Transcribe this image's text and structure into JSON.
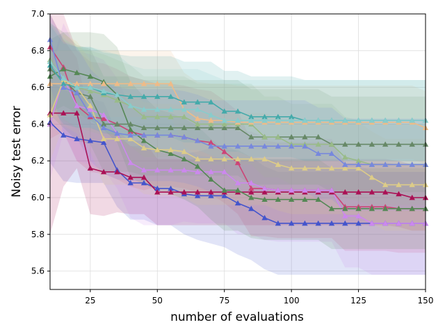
{
  "chart_data": {
    "type": "line",
    "title": "",
    "xlabel": "number of evaluations",
    "ylabel": "Noisy test error",
    "xlim": [
      10,
      150
    ],
    "ylim": [
      5.5,
      7.0
    ],
    "xticks": [
      25,
      50,
      75,
      100,
      125,
      150
    ],
    "yticks": [
      5.6,
      5.8,
      6.0,
      6.2,
      6.4,
      6.6,
      6.8,
      7.0
    ],
    "xtick_labels": [
      "25",
      "50",
      "75",
      "100",
      "125",
      "150"
    ],
    "ytick_labels": [
      "5.6",
      "5.8",
      "6.0",
      "6.2",
      "6.4",
      "6.6",
      "6.8",
      "7.0"
    ],
    "grid": true,
    "marker": "triangle",
    "x": [
      10,
      15,
      20,
      25,
      30,
      35,
      40,
      45,
      50,
      55,
      60,
      65,
      70,
      75,
      80,
      85,
      90,
      95,
      100,
      105,
      110,
      115,
      120,
      125,
      130,
      135,
      140,
      145,
      150
    ],
    "series": [
      {
        "name": "blue",
        "color": "#4455cc",
        "values": [
          6.41,
          6.34,
          6.32,
          6.31,
          6.3,
          6.15,
          6.08,
          6.08,
          6.05,
          6.05,
          6.02,
          6.01,
          6.01,
          6.01,
          5.97,
          5.94,
          5.89,
          5.86,
          5.86,
          5.86,
          5.86,
          5.86,
          5.86,
          5.86,
          5.86,
          5.86,
          5.86,
          5.86,
          5.86
        ],
        "band": [
          0.22,
          0.25,
          0.24,
          0.23,
          0.22,
          0.2,
          0.2,
          0.2,
          0.2,
          0.2,
          0.22,
          0.24,
          0.26,
          0.28,
          0.28,
          0.28,
          0.28,
          0.28,
          0.28,
          0.28,
          0.28,
          0.28,
          0.28,
          0.28,
          0.28,
          0.28,
          0.28,
          0.28,
          0.28
        ]
      },
      {
        "name": "crimson",
        "color": "#aa1155",
        "values": [
          6.46,
          6.46,
          6.46,
          6.16,
          6.14,
          6.14,
          6.11,
          6.11,
          6.03,
          6.03,
          6.03,
          6.03,
          6.03,
          6.03,
          6.03,
          6.03,
          6.03,
          6.03,
          6.03,
          6.03,
          6.03,
          6.03,
          6.03,
          6.03,
          6.03,
          6.03,
          6.02,
          6.0,
          6.0
        ],
        "band": [
          0.66,
          0.4,
          0.3,
          0.25,
          0.24,
          0.22,
          0.2,
          0.2,
          0.18,
          0.18,
          0.18,
          0.18,
          0.18,
          0.18,
          0.18,
          0.18,
          0.18,
          0.18,
          0.18,
          0.18,
          0.18,
          0.18,
          0.18,
          0.18,
          0.18,
          0.18,
          0.18,
          0.18,
          0.18
        ]
      },
      {
        "name": "pink",
        "color": "#cc4477",
        "values": [
          6.82,
          6.71,
          6.5,
          6.44,
          6.43,
          6.4,
          6.36,
          6.34,
          6.34,
          6.34,
          6.33,
          6.31,
          6.3,
          6.25,
          6.19,
          6.05,
          6.05,
          6.04,
          6.04,
          6.04,
          6.04,
          6.04,
          5.95,
          5.95,
          5.95,
          5.95,
          5.94,
          5.94,
          5.94
        ],
        "band": [
          0.5,
          0.35,
          0.3,
          0.3,
          0.3,
          0.3,
          0.3,
          0.3,
          0.28,
          0.28,
          0.28,
          0.28,
          0.28,
          0.28,
          0.28,
          0.26,
          0.26,
          0.26,
          0.26,
          0.26,
          0.26,
          0.26,
          0.24,
          0.24,
          0.24,
          0.24,
          0.24,
          0.24,
          0.24
        ]
      },
      {
        "name": "violet",
        "color": "#cc88ee",
        "values": [
          6.4,
          6.65,
          6.5,
          6.48,
          6.45,
          6.35,
          6.19,
          6.15,
          6.15,
          6.15,
          6.15,
          6.14,
          6.14,
          6.14,
          6.08,
          6.08,
          6.05,
          6.04,
          6.04,
          6.04,
          6.04,
          6.04,
          5.9,
          5.9,
          5.86,
          5.86,
          5.86,
          5.86,
          5.86
        ],
        "band": [
          0.3,
          0.3,
          0.3,
          0.3,
          0.3,
          0.3,
          0.3,
          0.3,
          0.3,
          0.3,
          0.28,
          0.28,
          0.28,
          0.28,
          0.28,
          0.28,
          0.28,
          0.28,
          0.28,
          0.28,
          0.28,
          0.28,
          0.28,
          0.28,
          0.28,
          0.28,
          0.28,
          0.28,
          0.28
        ]
      },
      {
        "name": "green",
        "color": "#558855",
        "values": [
          6.66,
          6.7,
          6.68,
          6.66,
          6.63,
          6.56,
          6.37,
          6.31,
          6.26,
          6.24,
          6.21,
          6.17,
          6.1,
          6.04,
          6.04,
          6.0,
          5.99,
          5.99,
          5.99,
          5.99,
          5.99,
          5.94,
          5.94,
          5.94,
          5.94,
          5.94,
          5.94,
          5.94,
          5.94
        ],
        "band": [
          0.2,
          0.2,
          0.22,
          0.24,
          0.26,
          0.26,
          0.26,
          0.24,
          0.22,
          0.22,
          0.22,
          0.22,
          0.22,
          0.22,
          0.22,
          0.22,
          0.22,
          0.22,
          0.22,
          0.22,
          0.22,
          0.22,
          0.22,
          0.22,
          0.22,
          0.22,
          0.22,
          0.22,
          0.22
        ]
      },
      {
        "name": "olive-green",
        "color": "#668866",
        "values": [
          6.7,
          6.64,
          6.57,
          6.55,
          6.4,
          6.4,
          6.4,
          6.38,
          6.38,
          6.38,
          6.38,
          6.38,
          6.38,
          6.38,
          6.38,
          6.33,
          6.33,
          6.33,
          6.33,
          6.33,
          6.33,
          6.29,
          6.29,
          6.29,
          6.29,
          6.29,
          6.29,
          6.29,
          6.29
        ],
        "band": [
          0.25,
          0.26,
          0.26,
          0.26,
          0.26,
          0.26,
          0.26,
          0.26,
          0.26,
          0.26,
          0.26,
          0.26,
          0.26,
          0.26,
          0.26,
          0.26,
          0.26,
          0.26,
          0.26,
          0.26,
          0.26,
          0.26,
          0.26,
          0.26,
          0.26,
          0.26,
          0.26,
          0.26,
          0.26
        ]
      },
      {
        "name": "light-green",
        "color": "#99bb88",
        "values": [
          6.75,
          6.64,
          6.6,
          6.58,
          6.56,
          6.53,
          6.5,
          6.44,
          6.44,
          6.44,
          6.44,
          6.4,
          6.4,
          6.4,
          6.4,
          6.4,
          6.33,
          6.33,
          6.29,
          6.29,
          6.29,
          6.29,
          6.22,
          6.2,
          6.18,
          6.18,
          6.18,
          6.18,
          6.18
        ],
        "band": [
          0.2,
          0.22,
          0.22,
          0.22,
          0.22,
          0.22,
          0.22,
          0.22,
          0.22,
          0.22,
          0.22,
          0.22,
          0.22,
          0.22,
          0.22,
          0.22,
          0.22,
          0.22,
          0.22,
          0.22,
          0.22,
          0.22,
          0.22,
          0.22,
          0.22,
          0.22,
          0.22,
          0.22,
          0.22
        ]
      },
      {
        "name": "khaki",
        "color": "#ddcc88",
        "values": [
          6.45,
          6.64,
          6.6,
          6.5,
          6.32,
          6.32,
          6.32,
          6.27,
          6.26,
          6.26,
          6.25,
          6.21,
          6.21,
          6.21,
          6.21,
          6.21,
          6.21,
          6.18,
          6.16,
          6.16,
          6.16,
          6.16,
          6.16,
          6.16,
          6.11,
          6.07,
          6.07,
          6.07,
          6.07
        ],
        "band": [
          0.25,
          0.25,
          0.25,
          0.25,
          0.25,
          0.25,
          0.25,
          0.25,
          0.25,
          0.25,
          0.25,
          0.25,
          0.25,
          0.25,
          0.25,
          0.25,
          0.25,
          0.25,
          0.25,
          0.25,
          0.25,
          0.25,
          0.25,
          0.25,
          0.25,
          0.25,
          0.25,
          0.25,
          0.25
        ]
      },
      {
        "name": "peach",
        "color": "#eebb88",
        "values": [
          6.62,
          6.62,
          6.62,
          6.62,
          6.62,
          6.62,
          6.62,
          6.62,
          6.62,
          6.62,
          6.48,
          6.43,
          6.42,
          6.42,
          6.41,
          6.41,
          6.41,
          6.41,
          6.41,
          6.41,
          6.41,
          6.41,
          6.41,
          6.41,
          6.41,
          6.41,
          6.41,
          6.41,
          6.38
        ],
        "band": [
          0.18,
          0.18,
          0.18,
          0.18,
          0.18,
          0.18,
          0.18,
          0.18,
          0.18,
          0.18,
          0.2,
          0.2,
          0.2,
          0.2,
          0.2,
          0.2,
          0.2,
          0.2,
          0.2,
          0.2,
          0.2,
          0.2,
          0.2,
          0.2,
          0.2,
          0.2,
          0.2,
          0.2,
          0.2
        ]
      },
      {
        "name": "teal",
        "color": "#44aaaa",
        "values": [
          6.72,
          6.62,
          6.6,
          6.6,
          6.57,
          6.56,
          6.55,
          6.55,
          6.55,
          6.55,
          6.52,
          6.52,
          6.52,
          6.47,
          6.47,
          6.44,
          6.44,
          6.44,
          6.44,
          6.42,
          6.42,
          6.42,
          6.42,
          6.42,
          6.42,
          6.42,
          6.42,
          6.42,
          6.42
        ],
        "band": [
          0.22,
          0.22,
          0.22,
          0.22,
          0.22,
          0.22,
          0.22,
          0.22,
          0.22,
          0.22,
          0.22,
          0.22,
          0.22,
          0.22,
          0.22,
          0.22,
          0.22,
          0.22,
          0.22,
          0.22,
          0.22,
          0.22,
          0.22,
          0.22,
          0.22,
          0.22,
          0.22,
          0.22,
          0.22
        ]
      },
      {
        "name": "light-teal",
        "color": "#88cccc",
        "values": [
          6.74,
          6.65,
          6.6,
          6.6,
          6.58,
          6.56,
          6.5,
          6.48,
          6.48,
          6.48,
          6.48,
          6.48,
          6.45,
          6.42,
          6.42,
          6.42,
          6.42,
          6.42,
          6.42,
          6.42,
          6.42,
          6.42,
          6.42,
          6.42,
          6.42,
          6.42,
          6.42,
          6.42,
          6.42
        ],
        "band": [
          0.22,
          0.22,
          0.22,
          0.22,
          0.22,
          0.22,
          0.22,
          0.22,
          0.22,
          0.22,
          0.22,
          0.22,
          0.22,
          0.22,
          0.22,
          0.22,
          0.22,
          0.22,
          0.22,
          0.22,
          0.22,
          0.22,
          0.22,
          0.22,
          0.22,
          0.22,
          0.22,
          0.22,
          0.22
        ]
      },
      {
        "name": "lavender-blue",
        "color": "#7788dd",
        "values": [
          6.86,
          6.6,
          6.57,
          6.45,
          6.38,
          6.35,
          6.34,
          6.34,
          6.34,
          6.34,
          6.33,
          6.31,
          6.28,
          6.28,
          6.28,
          6.28,
          6.28,
          6.28,
          6.28,
          6.28,
          6.24,
          6.24,
          6.18,
          6.18,
          6.18,
          6.18,
          6.18,
          6.18,
          6.18
        ],
        "band": [
          0.25,
          0.25,
          0.25,
          0.25,
          0.25,
          0.25,
          0.25,
          0.25,
          0.25,
          0.25,
          0.25,
          0.25,
          0.25,
          0.25,
          0.25,
          0.25,
          0.25,
          0.25,
          0.25,
          0.25,
          0.25,
          0.25,
          0.25,
          0.25,
          0.25,
          0.25,
          0.25,
          0.25,
          0.25
        ]
      }
    ]
  }
}
